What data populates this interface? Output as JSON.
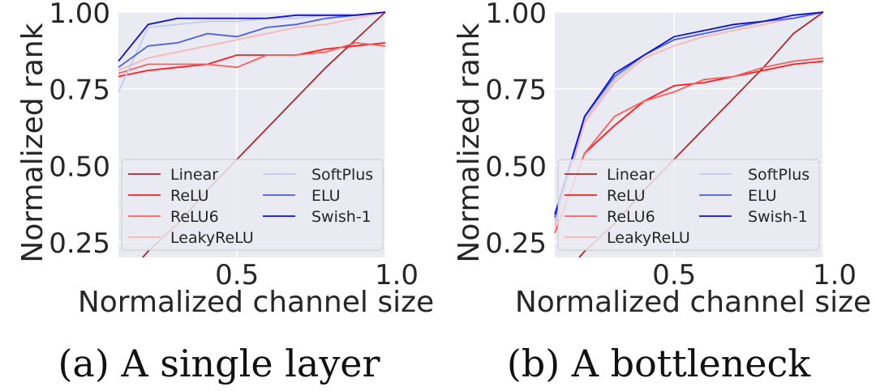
{
  "chart_data": [
    {
      "type": "line",
      "caption": "(a) A single layer",
      "xlabel": "Normalized channel size",
      "ylabel": "Normalized rank",
      "xlim": [
        0.1,
        1.0
      ],
      "ylim": [
        0.2,
        1.0
      ],
      "xticks": [
        "0.5",
        "1.0"
      ],
      "yticks": [
        "0.25",
        "0.50",
        "0.75",
        "1.00"
      ],
      "grid": true,
      "legend_position": "bottom",
      "x": [
        0.1,
        0.2,
        0.3,
        0.4,
        0.5,
        0.6,
        0.7,
        0.8,
        0.9,
        1.0
      ],
      "series": [
        {
          "name": "Linear",
          "color": "#a52a2a",
          "values": [
            0.11,
            0.22,
            0.31,
            0.42,
            0.52,
            0.62,
            0.72,
            0.82,
            0.91,
            1.0
          ]
        },
        {
          "name": "ReLU",
          "color": "#ff1a1a",
          "values": [
            0.79,
            0.81,
            0.82,
            0.83,
            0.86,
            0.86,
            0.86,
            0.88,
            0.89,
            0.9
          ]
        },
        {
          "name": "ReLU6",
          "color": "#ff5c5c",
          "values": [
            0.8,
            0.83,
            0.83,
            0.83,
            0.82,
            0.86,
            0.86,
            0.87,
            0.9,
            0.89
          ]
        },
        {
          "name": "LeakyReLU",
          "color": "#f7b6b6",
          "values": [
            0.81,
            0.85,
            0.87,
            0.89,
            0.91,
            0.93,
            0.95,
            0.96,
            0.98,
            1.0
          ]
        },
        {
          "name": "SoftPlus",
          "color": "#c3c8f5",
          "values": [
            0.74,
            0.95,
            0.96,
            0.97,
            0.97,
            0.98,
            0.98,
            0.99,
            0.99,
            1.0
          ]
        },
        {
          "name": "ELU",
          "color": "#4a5cf0",
          "values": [
            0.82,
            0.89,
            0.9,
            0.93,
            0.92,
            0.95,
            0.96,
            0.98,
            0.99,
            1.0
          ]
        },
        {
          "name": "Swish-1",
          "color": "#1010cc",
          "values": [
            0.84,
            0.96,
            0.98,
            0.98,
            0.98,
            0.98,
            0.99,
            0.99,
            0.99,
            1.0
          ]
        }
      ]
    },
    {
      "type": "line",
      "caption": "(b) A bottleneck",
      "xlabel": "Normalized channel size",
      "ylabel": "Normalized rank",
      "xlim": [
        0.1,
        1.0
      ],
      "ylim": [
        0.2,
        1.0
      ],
      "xticks": [
        "0.5",
        "1.0"
      ],
      "yticks": [
        "0.25",
        "0.50",
        "0.75",
        "1.00"
      ],
      "grid": true,
      "legend_position": "bottom",
      "x": [
        0.1,
        0.2,
        0.3,
        0.4,
        0.5,
        0.6,
        0.7,
        0.8,
        0.9,
        1.0
      ],
      "series": [
        {
          "name": "Linear",
          "color": "#a52a2a",
          "values": [
            0.11,
            0.22,
            0.31,
            0.42,
            0.52,
            0.62,
            0.72,
            0.82,
            0.93,
            1.0
          ]
        },
        {
          "name": "ReLU",
          "color": "#ff1a1a",
          "values": [
            0.28,
            0.54,
            0.63,
            0.71,
            0.76,
            0.77,
            0.79,
            0.81,
            0.83,
            0.84
          ]
        },
        {
          "name": "ReLU6",
          "color": "#ff5c5c",
          "values": [
            0.28,
            0.54,
            0.66,
            0.71,
            0.74,
            0.78,
            0.79,
            0.82,
            0.84,
            0.85
          ]
        },
        {
          "name": "LeakyReLU",
          "color": "#f7b6b6",
          "values": [
            0.3,
            0.64,
            0.77,
            0.85,
            0.89,
            0.92,
            0.94,
            0.96,
            0.98,
            1.0
          ]
        },
        {
          "name": "SoftPlus",
          "color": "#c3c8f5",
          "values": [
            0.32,
            0.65,
            0.78,
            0.86,
            0.91,
            0.93,
            0.95,
            0.97,
            0.98,
            1.0
          ]
        },
        {
          "name": "ELU",
          "color": "#4a5cf0",
          "values": [
            0.33,
            0.66,
            0.79,
            0.86,
            0.91,
            0.93,
            0.95,
            0.97,
            0.98,
            1.0
          ]
        },
        {
          "name": "Swish-1",
          "color": "#1010cc",
          "values": [
            0.34,
            0.66,
            0.8,
            0.86,
            0.92,
            0.94,
            0.96,
            0.97,
            0.99,
            1.0
          ]
        }
      ]
    }
  ]
}
